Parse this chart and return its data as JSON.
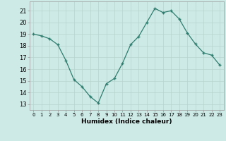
{
  "x": [
    0,
    1,
    2,
    3,
    4,
    5,
    6,
    7,
    8,
    9,
    10,
    11,
    12,
    13,
    14,
    15,
    16,
    17,
    18,
    19,
    20,
    21,
    22,
    23
  ],
  "y": [
    19.0,
    18.85,
    18.6,
    18.1,
    16.75,
    15.1,
    14.5,
    13.65,
    13.1,
    14.75,
    15.2,
    16.5,
    18.1,
    18.8,
    20.0,
    21.2,
    20.85,
    21.0,
    20.3,
    19.1,
    18.15,
    17.4,
    17.2,
    16.35
  ],
  "line_color": "#2e7d6e",
  "marker_color": "#2e7d6e",
  "bg_color": "#ceeae6",
  "grid_color": "#b8d4cf",
  "xlabel": "Humidex (Indice chaleur)",
  "ylabel_ticks": [
    13,
    14,
    15,
    16,
    17,
    18,
    19,
    20,
    21
  ],
  "xlim": [
    -0.5,
    23.5
  ],
  "ylim": [
    12.5,
    21.8
  ],
  "xticks": [
    0,
    1,
    2,
    3,
    4,
    5,
    6,
    7,
    8,
    9,
    10,
    11,
    12,
    13,
    14,
    15,
    16,
    17,
    18,
    19,
    20,
    21,
    22,
    23
  ]
}
